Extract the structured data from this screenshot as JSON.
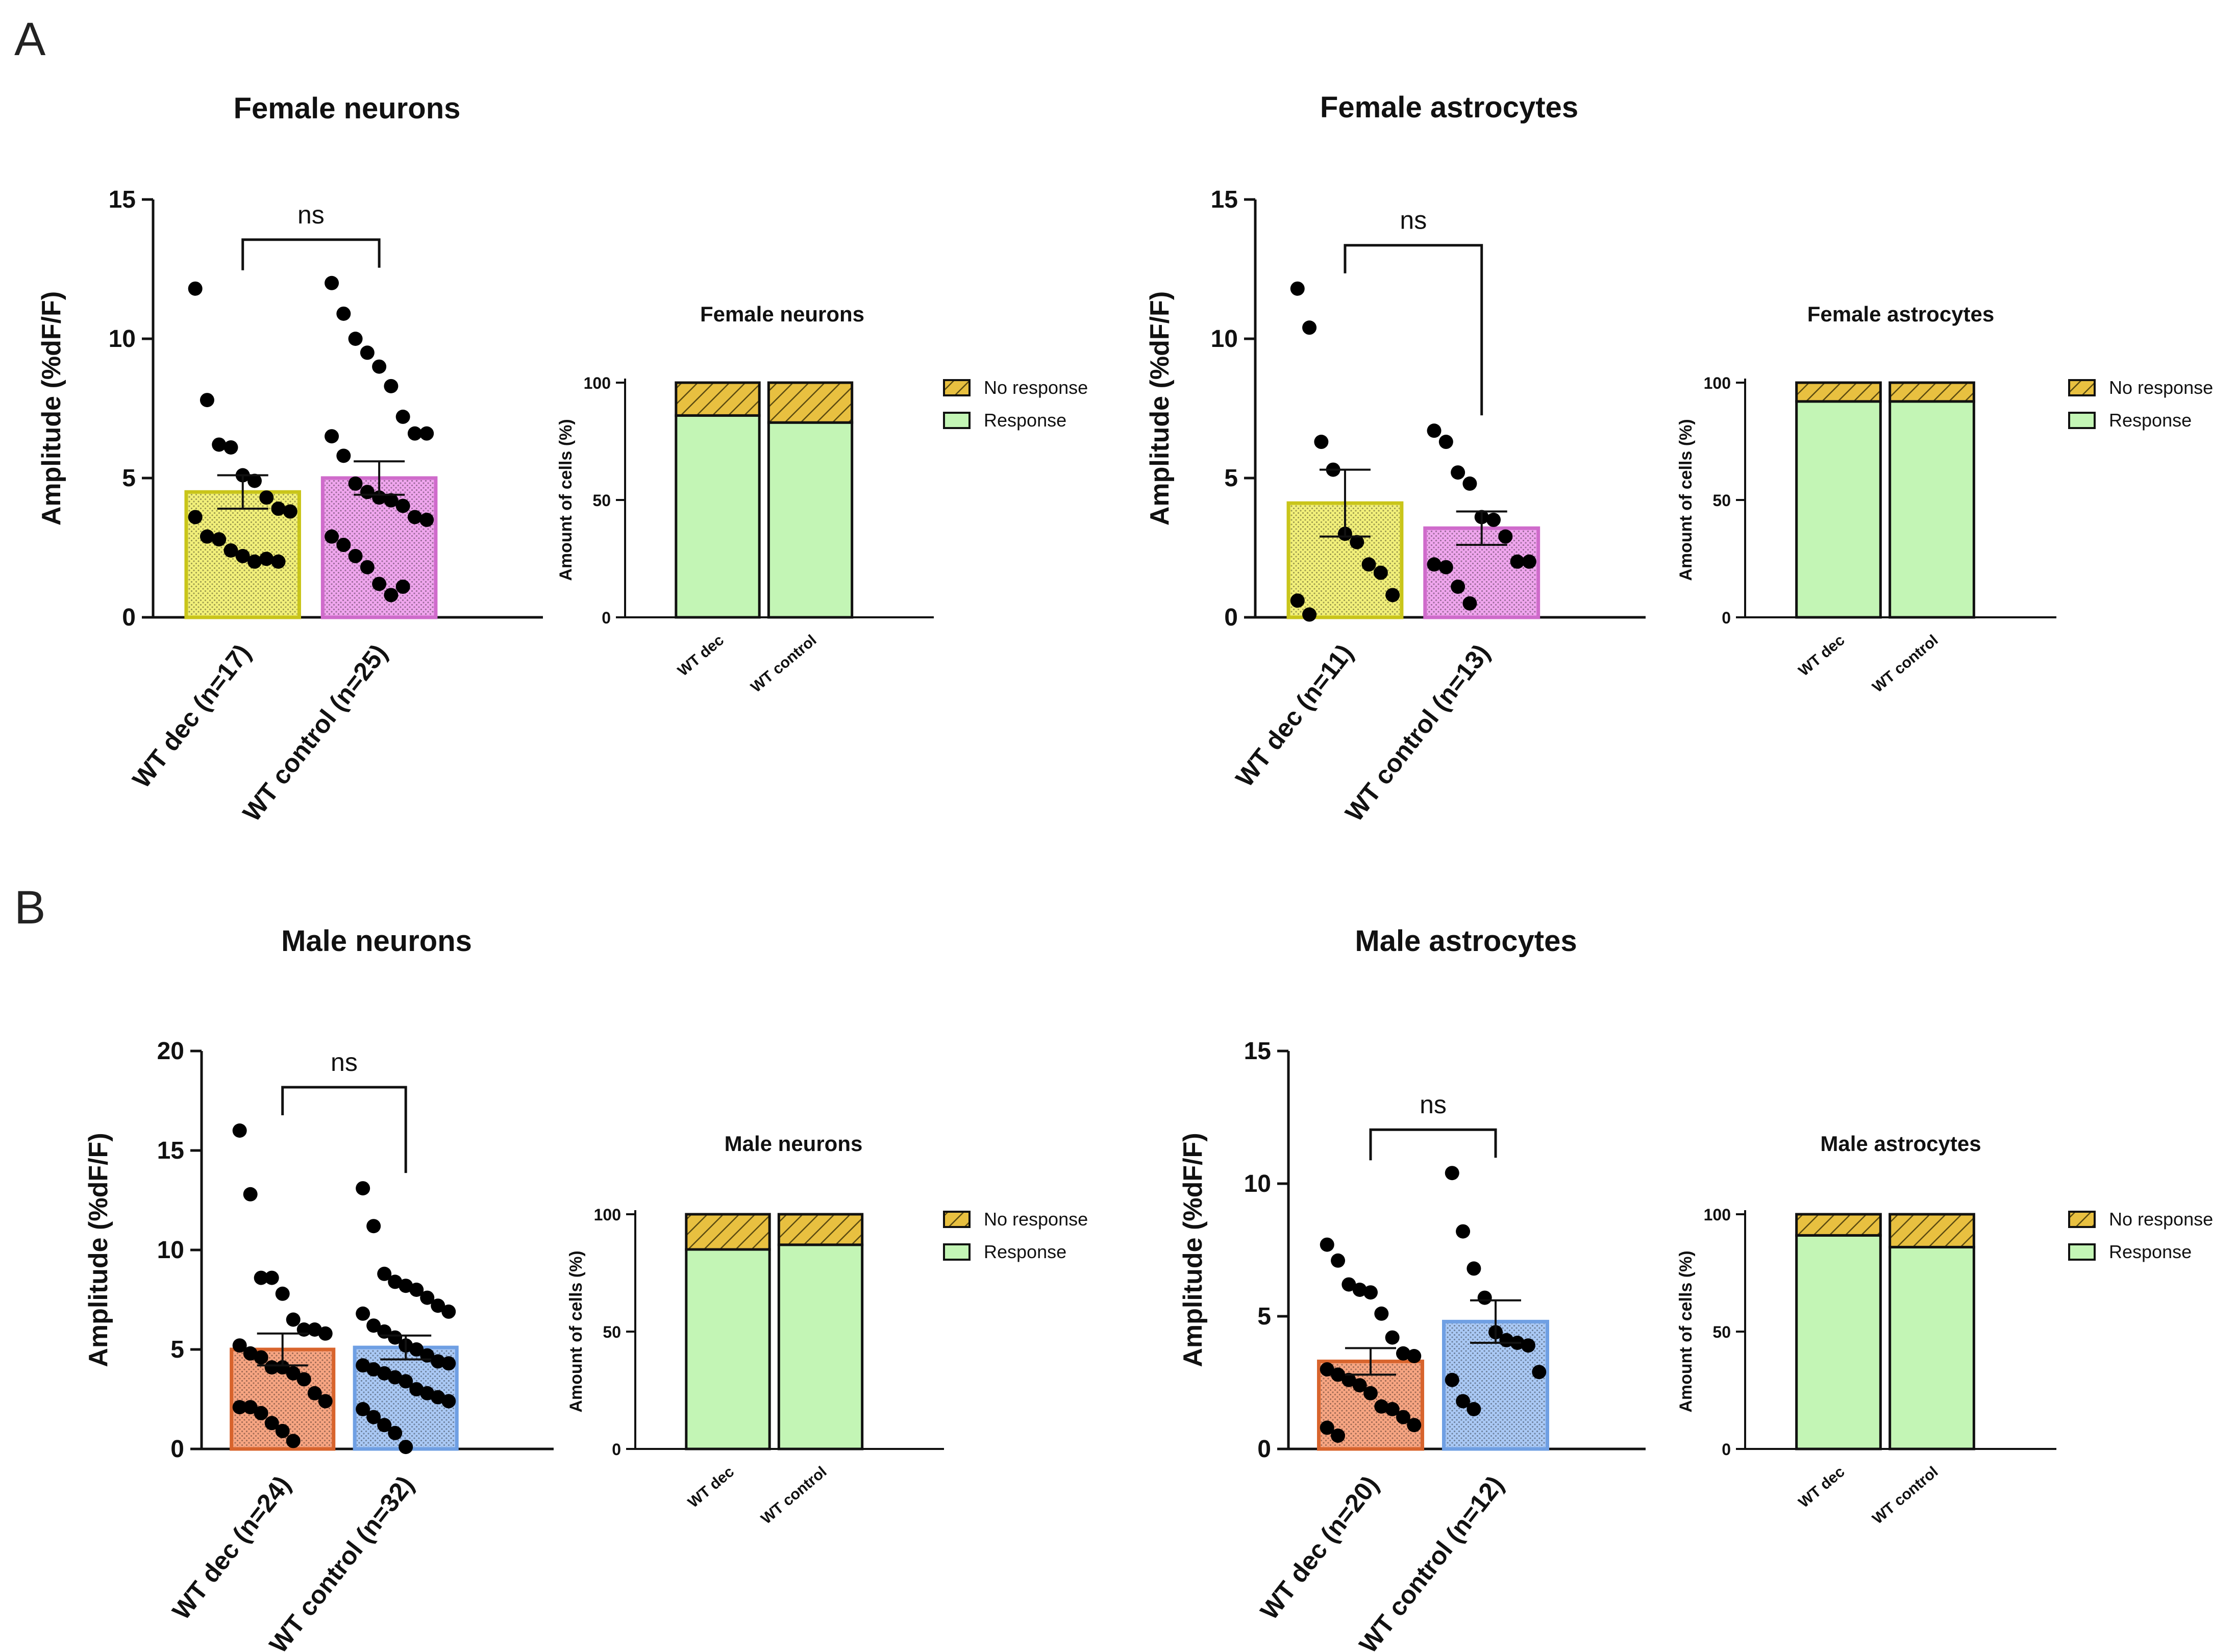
{
  "panels": {
    "A": "A",
    "B": "B"
  },
  "colors": {
    "dec_female": "#f2f07a",
    "dec_female_edge": "#c9c51a",
    "ctrl_female": "#f0a6ee",
    "ctrl_female_edge": "#cf6bcb",
    "dec_male": "#f7a582",
    "dec_male_edge": "#d8642d",
    "ctrl_male": "#aac9f5",
    "ctrl_male_edge": "#6f9fe3",
    "response": "#c3f5b5",
    "no_response": "#e8c040"
  },
  "legend": {
    "no_response": "No response",
    "response": "Response"
  },
  "chart_data": [
    {
      "id": "female-neurons-amplitude",
      "type": "bar",
      "title": "Female neurons",
      "ylabel": "Amplitude (%dF/F)",
      "xlabel": "",
      "ylim": [
        0,
        15
      ],
      "yticks": [
        "0",
        "5",
        "10",
        "15"
      ],
      "categories": [
        "WT dec (n=17)",
        "WT control (n=25)"
      ],
      "values": [
        4.5,
        5.0
      ],
      "sem": [
        0.6,
        0.6
      ],
      "significance": "ns",
      "points": [
        [
          11.8,
          7.8,
          6.2,
          6.1,
          5.1,
          4.9,
          4.3,
          3.9,
          3.8,
          3.6,
          2.9,
          2.8,
          2.4,
          2.2,
          2.0,
          2.1,
          2.0
        ],
        [
          12.0,
          10.9,
          10.0,
          9.5,
          9.0,
          8.3,
          7.2,
          6.6,
          6.6,
          6.5,
          5.8,
          4.8,
          4.5,
          4.3,
          4.2,
          4.0,
          3.6,
          3.5,
          2.9,
          2.6,
          2.2,
          1.8,
          1.2,
          0.8,
          1.1
        ]
      ]
    },
    {
      "id": "female-neurons-response",
      "type": "bar",
      "title": "Female neurons",
      "ylabel": "Amount of cells (%)",
      "xlabel": "",
      "ylim": [
        0,
        100
      ],
      "yticks": [
        "0",
        "50",
        "100"
      ],
      "categories": [
        "WT dec",
        "WT control"
      ],
      "series": [
        {
          "name": "Response",
          "values": [
            86,
            83
          ]
        },
        {
          "name": "No response",
          "values": [
            14,
            17
          ]
        }
      ]
    },
    {
      "id": "female-astrocytes-amplitude",
      "type": "bar",
      "title": "Female astrocytes",
      "ylabel": "Amplitude (%dF/F)",
      "xlabel": "",
      "ylim": [
        0,
        15
      ],
      "yticks": [
        "0",
        "5",
        "10",
        "15"
      ],
      "categories": [
        "WT dec (n=11)",
        "WT control (n=13)"
      ],
      "values": [
        4.1,
        3.2
      ],
      "sem": [
        1.2,
        0.6
      ],
      "significance": "ns",
      "points": [
        [
          11.8,
          10.4,
          6.3,
          5.3,
          3.0,
          2.7,
          1.9,
          1.6,
          0.8,
          0.6,
          0.1
        ],
        [
          6.7,
          6.3,
          5.2,
          4.8,
          3.6,
          3.5,
          2.9,
          2.0,
          2.0,
          1.9,
          1.8,
          1.1,
          0.5
        ]
      ]
    },
    {
      "id": "female-astrocytes-response",
      "type": "bar",
      "title": "Female astrocytes",
      "ylabel": "Amount of cells (%)",
      "xlabel": "",
      "ylim": [
        0,
        100
      ],
      "yticks": [
        "0",
        "50",
        "100"
      ],
      "categories": [
        "WT dec",
        "WT control"
      ],
      "series": [
        {
          "name": "Response",
          "values": [
            92,
            92
          ]
        },
        {
          "name": "No response",
          "values": [
            8,
            8
          ]
        }
      ]
    },
    {
      "id": "male-neurons-amplitude",
      "type": "bar",
      "title": "Male neurons",
      "ylabel": "Amplitude (%dF/F)",
      "xlabel": "",
      "ylim": [
        0,
        20
      ],
      "yticks": [
        "0",
        "5",
        "10",
        "15",
        "20"
      ],
      "categories": [
        "WT dec (n=24)",
        "WT control (n=32)"
      ],
      "values": [
        5.0,
        5.1
      ],
      "sem": [
        0.8,
        0.6
      ],
      "significance": "ns",
      "points": [
        [
          16.0,
          12.8,
          8.6,
          8.6,
          7.8,
          6.5,
          6.0,
          6.0,
          5.8,
          5.2,
          4.8,
          4.6,
          4.1,
          4.1,
          3.8,
          3.5,
          2.8,
          2.4,
          2.1,
          2.1,
          1.8,
          1.3,
          0.9,
          0.4
        ],
        [
          13.1,
          11.2,
          8.8,
          8.4,
          8.2,
          8.0,
          7.6,
          7.2,
          6.9,
          6.8,
          6.2,
          5.9,
          5.6,
          5.2,
          5.0,
          4.7,
          4.4,
          4.3,
          4.2,
          4.0,
          3.8,
          3.6,
          3.4,
          3.0,
          2.8,
          2.6,
          2.4,
          2.0,
          1.6,
          1.2,
          0.8,
          0.1
        ]
      ]
    },
    {
      "id": "male-neurons-response",
      "type": "bar",
      "title": "Male neurons",
      "ylabel": "Amount of cells (%)",
      "xlabel": "",
      "ylim": [
        0,
        100
      ],
      "yticks": [
        "0",
        "50",
        "100"
      ],
      "categories": [
        "WT dec",
        "WT control"
      ],
      "series": [
        {
          "name": "Response",
          "values": [
            85,
            87
          ]
        },
        {
          "name": "No response",
          "values": [
            15,
            13
          ]
        }
      ]
    },
    {
      "id": "male-astrocytes-amplitude",
      "type": "bar",
      "title": "Male astrocytes",
      "ylabel": "Amplitude (%dF/F)",
      "xlabel": "",
      "ylim": [
        0,
        15
      ],
      "yticks": [
        "0",
        "5",
        "10",
        "15"
      ],
      "categories": [
        "WT dec (n=20)",
        "WT control (n=12)"
      ],
      "values": [
        3.3,
        4.8
      ],
      "sem": [
        0.5,
        0.8
      ],
      "significance": "ns",
      "points": [
        [
          7.7,
          7.1,
          6.2,
          6.0,
          5.9,
          5.1,
          4.2,
          3.6,
          3.5,
          3.0,
          2.8,
          2.6,
          2.4,
          2.1,
          1.6,
          1.5,
          1.2,
          0.9,
          0.8,
          0.5
        ],
        [
          10.4,
          8.2,
          6.8,
          5.7,
          4.4,
          4.1,
          4.0,
          3.9,
          2.9,
          2.6,
          1.8,
          1.5
        ]
      ]
    },
    {
      "id": "male-astrocytes-response",
      "type": "bar",
      "title": "Male astrocytes",
      "ylabel": "Amount of cells (%)",
      "xlabel": "",
      "ylim": [
        0,
        100
      ],
      "yticks": [
        "0",
        "50",
        "100"
      ],
      "categories": [
        "WT dec",
        "WT control"
      ],
      "series": [
        {
          "name": "Response",
          "values": [
            91,
            86
          ]
        },
        {
          "name": "No response",
          "values": [
            9,
            14
          ]
        }
      ]
    }
  ]
}
